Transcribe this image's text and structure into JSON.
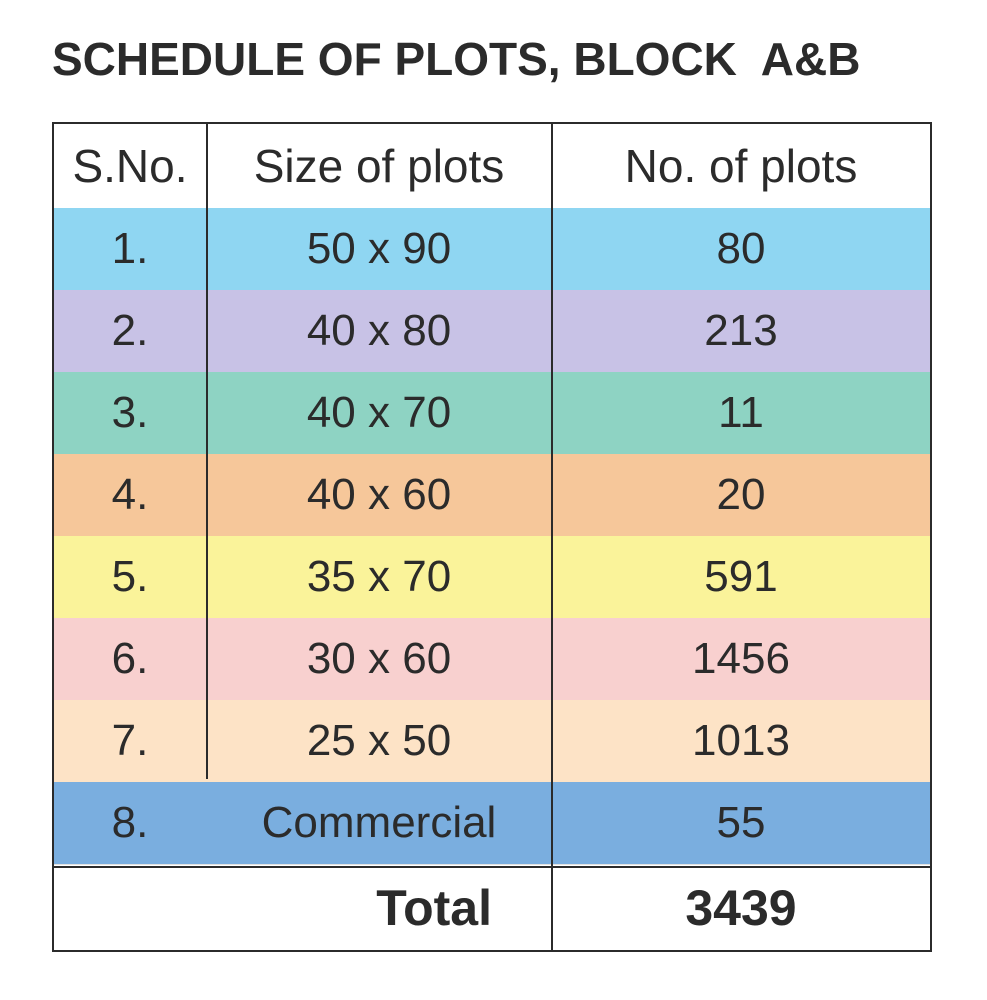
{
  "title": "SCHEDULE OF PLOTS, BLOCK  A&B",
  "headers": {
    "sno": "S.No.",
    "size": "Size of plots",
    "num": "No. of plots"
  },
  "rows": [
    {
      "sno": "1.",
      "size": "50 x 90",
      "num": "80",
      "color": "#8fd6f2"
    },
    {
      "sno": "2.",
      "size": "40 x 80",
      "num": "213",
      "color": "#c8c2e6"
    },
    {
      "sno": "3.",
      "size": "40 x 70",
      "num": "11",
      "color": "#8ed3c3"
    },
    {
      "sno": "4.",
      "size": "40 x 60",
      "num": "20",
      "color": "#f6c79a"
    },
    {
      "sno": "5.",
      "size": "35 x 70",
      "num": "591",
      "color": "#faf39a"
    },
    {
      "sno": "6.",
      "size": "30 x 60",
      "num": "1456",
      "color": "#f8d0cf"
    },
    {
      "sno": "7.",
      "size": "25 x 50",
      "num": "1013",
      "color": "#fde3c6"
    },
    {
      "sno": "8.",
      "size": "Commercial",
      "num": "55",
      "color": "#7aaedf"
    }
  ],
  "total": {
    "label": "Total",
    "value": "3439"
  }
}
